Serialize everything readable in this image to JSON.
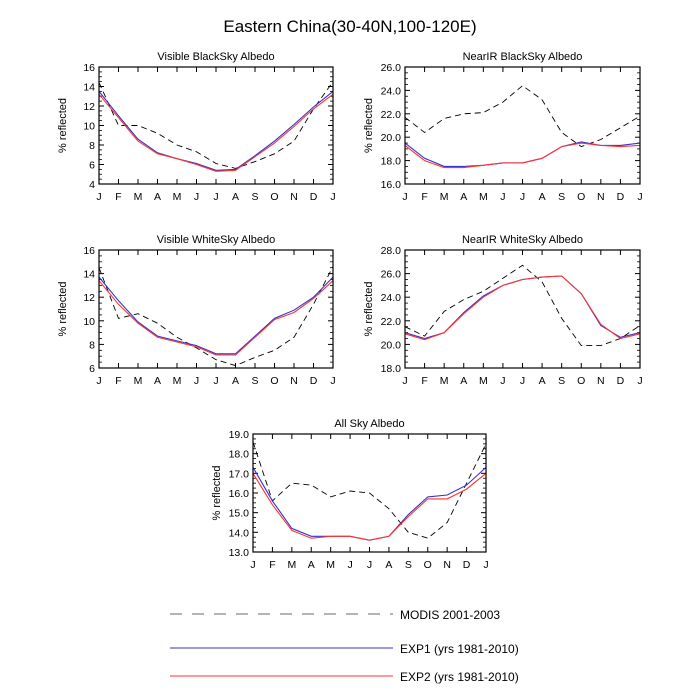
{
  "figure": {
    "title": "Eastern China(30-40N,100-120E)"
  },
  "colors": {
    "modis": "#000000",
    "exp1": "#3333cc",
    "exp2": "#ff3333",
    "axis": "#000000"
  },
  "legend": {
    "items": [
      {
        "key": "modis",
        "label": "MODIS 2001-2003",
        "style": "dashed"
      },
      {
        "key": "exp1",
        "label": "EXP1 (yrs 1981-2010)",
        "style": "solid"
      },
      {
        "key": "exp2",
        "label": "EXP2 (yrs 1981-2010)",
        "style": "solid"
      }
    ]
  },
  "chart_data": [
    {
      "type": "line",
      "title": "Visible BlackSky Albedo",
      "ylabel": "% reflected",
      "xlabel": "",
      "categories": [
        "J",
        "F",
        "M",
        "A",
        "M",
        "J",
        "J",
        "A",
        "S",
        "O",
        "N",
        "D",
        "J"
      ],
      "ylim": [
        4,
        16
      ],
      "yticks": [
        "4",
        "6",
        "8",
        "10",
        "12",
        "14",
        "16"
      ],
      "series": [
        {
          "name": "MODIS 2001-2003",
          "key": "modis",
          "values": [
            14.4,
            10.0,
            10.0,
            9.2,
            8.0,
            7.3,
            6.1,
            5.6,
            6.3,
            7.1,
            8.4,
            11.7,
            14.5
          ]
        },
        {
          "name": "EXP1 (yrs 1981-2010)",
          "key": "exp1",
          "values": [
            13.5,
            11.0,
            8.6,
            7.2,
            6.6,
            6.1,
            5.4,
            5.5,
            6.9,
            8.4,
            10.1,
            11.9,
            13.5
          ]
        },
        {
          "name": "EXP2 (yrs 1981-2010)",
          "key": "exp2",
          "values": [
            13.2,
            10.8,
            8.4,
            7.1,
            6.6,
            6.0,
            5.3,
            5.4,
            6.8,
            8.2,
            9.9,
            11.7,
            13.2
          ]
        }
      ]
    },
    {
      "type": "line",
      "title": "NearIR BlackSky Albedo",
      "ylabel": "% reflected",
      "xlabel": "",
      "categories": [
        "J",
        "F",
        "M",
        "A",
        "M",
        "J",
        "J",
        "A",
        "S",
        "O",
        "N",
        "D",
        "J"
      ],
      "ylim": [
        16,
        26
      ],
      "yticks": [
        "16.0",
        "18.0",
        "20.0",
        "22.0",
        "24.0",
        "26.0"
      ],
      "series": [
        {
          "name": "MODIS 2001-2003",
          "key": "modis",
          "values": [
            21.7,
            20.4,
            21.6,
            22.0,
            22.1,
            23.0,
            24.4,
            23.2,
            20.4,
            19.2,
            19.8,
            20.8,
            21.8
          ]
        },
        {
          "name": "EXP1 (yrs 1981-2010)",
          "key": "exp1",
          "values": [
            19.5,
            18.2,
            17.5,
            17.5,
            17.6,
            17.8,
            17.8,
            18.2,
            19.2,
            19.6,
            19.3,
            19.3,
            19.5
          ]
        },
        {
          "name": "EXP2 (yrs 1981-2010)",
          "key": "exp2",
          "values": [
            19.3,
            18.0,
            17.4,
            17.4,
            17.6,
            17.8,
            17.8,
            18.2,
            19.2,
            19.5,
            19.3,
            19.2,
            19.3
          ]
        }
      ]
    },
    {
      "type": "line",
      "title": "Visible WhiteSky Albedo",
      "ylabel": "% reflected",
      "xlabel": "",
      "categories": [
        "J",
        "F",
        "M",
        "A",
        "M",
        "J",
        "J",
        "A",
        "S",
        "O",
        "N",
        "D",
        "J"
      ],
      "ylim": [
        6,
        16
      ],
      "yticks": [
        "6",
        "8",
        "10",
        "12",
        "14",
        "16"
      ],
      "series": [
        {
          "name": "MODIS 2001-2003",
          "key": "modis",
          "values": [
            14.5,
            10.2,
            10.6,
            9.8,
            8.6,
            7.7,
            6.7,
            6.2,
            6.9,
            7.5,
            8.6,
            11.4,
            14.6
          ]
        },
        {
          "name": "EXP1 (yrs 1981-2010)",
          "key": "exp1",
          "values": [
            13.7,
            11.7,
            9.9,
            8.7,
            8.3,
            7.9,
            7.2,
            7.2,
            8.7,
            10.2,
            10.9,
            12.0,
            13.7
          ]
        },
        {
          "name": "EXP2 (yrs 1981-2010)",
          "key": "exp2",
          "values": [
            13.4,
            11.4,
            9.8,
            8.6,
            8.2,
            7.8,
            7.1,
            7.1,
            8.6,
            10.1,
            10.7,
            11.9,
            13.4
          ]
        }
      ]
    },
    {
      "type": "line",
      "title": "NearIR WhiteSky Albedo",
      "ylabel": "% reflected",
      "xlabel": "",
      "categories": [
        "J",
        "F",
        "M",
        "A",
        "M",
        "J",
        "J",
        "A",
        "S",
        "O",
        "N",
        "D",
        "J"
      ],
      "ylim": [
        18,
        28
      ],
      "yticks": [
        "18.0",
        "20.0",
        "22.0",
        "24.0",
        "26.0",
        "28.0"
      ],
      "series": [
        {
          "name": "MODIS 2001-2003",
          "key": "modis",
          "values": [
            21.5,
            20.7,
            22.8,
            23.8,
            24.5,
            25.6,
            26.7,
            25.3,
            22.2,
            19.9,
            19.9,
            20.5,
            21.6
          ]
        },
        {
          "name": "EXP1 (yrs 1981-2010)",
          "key": "exp1",
          "values": [
            21.0,
            20.5,
            21.0,
            22.7,
            24.1,
            25.0,
            25.5,
            25.7,
            25.8,
            24.3,
            21.6,
            20.6,
            21.0
          ]
        },
        {
          "name": "EXP2 (yrs 1981-2010)",
          "key": "exp2",
          "values": [
            20.9,
            20.4,
            21.0,
            22.6,
            24.0,
            25.0,
            25.5,
            25.7,
            25.8,
            24.3,
            21.7,
            20.5,
            20.9
          ]
        }
      ]
    },
    {
      "type": "line",
      "title": "All Sky Albedo",
      "ylabel": "% reflected",
      "xlabel": "",
      "categories": [
        "J",
        "F",
        "M",
        "A",
        "M",
        "J",
        "J",
        "A",
        "S",
        "O",
        "N",
        "D",
        "J"
      ],
      "ylim": [
        13,
        19
      ],
      "yticks": [
        "13.0",
        "14.0",
        "15.0",
        "16.0",
        "17.0",
        "18.0",
        "19.0"
      ],
      "series": [
        {
          "name": "MODIS 2001-2003",
          "key": "modis",
          "values": [
            18.6,
            15.6,
            16.5,
            16.4,
            15.8,
            16.1,
            16.0,
            15.2,
            14.0,
            13.7,
            14.5,
            16.5,
            18.5
          ]
        },
        {
          "name": "EXP1 (yrs 1981-2010)",
          "key": "exp1",
          "values": [
            17.3,
            15.6,
            14.2,
            13.8,
            13.8,
            13.8,
            13.6,
            13.8,
            14.9,
            15.8,
            15.9,
            16.4,
            17.3
          ]
        },
        {
          "name": "EXP2 (yrs 1981-2010)",
          "key": "exp2",
          "values": [
            17.0,
            15.4,
            14.1,
            13.7,
            13.8,
            13.8,
            13.6,
            13.8,
            14.8,
            15.7,
            15.7,
            16.2,
            17.0
          ]
        }
      ]
    }
  ]
}
